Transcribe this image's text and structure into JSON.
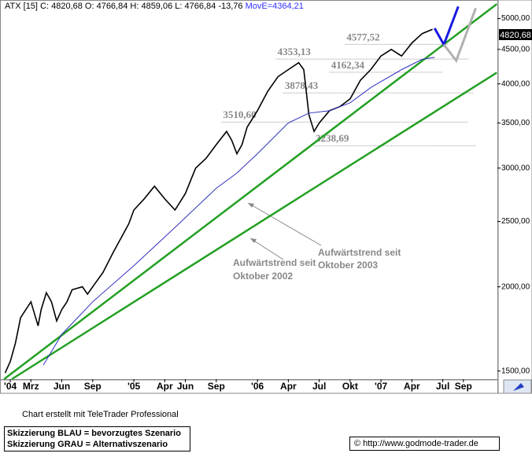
{
  "chart_data": {
    "type": "line",
    "log_scale": true,
    "header": "ATX [15] C: 4820,68 O: 4766,84 H: 4859,06 L: 4766,84 -13,76",
    "header_ma": "MovE=4364,21",
    "last_price": {
      "value": 4820.68,
      "label": "4820,68"
    },
    "xlim": [
      -1,
      47.3
    ],
    "ylim": [
      1459,
      5327
    ],
    "xticks": [
      {
        "value": 0,
        "label": "'04"
      },
      {
        "value": 2,
        "label": "Mrz"
      },
      {
        "value": 5,
        "label": "Jun"
      },
      {
        "value": 8,
        "label": "Sep"
      },
      {
        "value": 12,
        "label": "'05"
      },
      {
        "value": 15,
        "label": "Apr"
      },
      {
        "value": 17,
        "label": "Jun"
      },
      {
        "value": 20,
        "label": "Sep"
      },
      {
        "value": 24,
        "label": "'06"
      },
      {
        "value": 27,
        "label": "Apr"
      },
      {
        "value": 30,
        "label": "Jul"
      },
      {
        "value": 33,
        "label": "Okt"
      },
      {
        "value": 36,
        "label": "'07"
      },
      {
        "value": 39,
        "label": "Apr"
      },
      {
        "value": 42,
        "label": "Jul"
      },
      {
        "value": 44,
        "label": "Sep"
      }
    ],
    "yticks": [
      {
        "value": 1500,
        "label": "1500,00"
      },
      {
        "value": 2000,
        "label": "2000,00"
      },
      {
        "value": 2500,
        "label": "2500,00"
      },
      {
        "value": 3000,
        "label": "3000,00"
      },
      {
        "value": 3500,
        "label": "3500,00"
      },
      {
        "value": 4000,
        "label": "4000,00"
      },
      {
        "value": 4500,
        "label": "4500,00"
      },
      {
        "value": 5000,
        "label": "5000,00"
      }
    ],
    "series": [
      {
        "name": "ATX",
        "color": "#000000",
        "x": [
          -0.5,
          0,
          0.5,
          1,
          2,
          2.7,
          3,
          3.5,
          4,
          4.5,
          5,
          5.5,
          6,
          7,
          7.5,
          8,
          9,
          10,
          11,
          11.5,
          12,
          13,
          14,
          15,
          16,
          17,
          18,
          19,
          20,
          21,
          21.5,
          22,
          22.5,
          23,
          24,
          25,
          26,
          27,
          28,
          28.5,
          29,
          29.5,
          30,
          31,
          32,
          33,
          34,
          35,
          36,
          37,
          38,
          39,
          40,
          41
        ],
        "values": [
          1490,
          1550,
          1650,
          1800,
          1900,
          1750,
          1850,
          1960,
          1900,
          1780,
          1850,
          1900,
          1980,
          2000,
          1950,
          2000,
          2100,
          2250,
          2400,
          2480,
          2600,
          2700,
          2820,
          2700,
          2600,
          2750,
          3000,
          3100,
          3250,
          3400,
          3300,
          3150,
          3250,
          3450,
          3650,
          3900,
          4100,
          4200,
          4300,
          4200,
          3600,
          3400,
          3500,
          3650,
          3700,
          3800,
          4050,
          4200,
          4400,
          4500,
          4400,
          4600,
          4750,
          4820
        ]
      },
      {
        "name": "MovE",
        "color": "#3030c0",
        "x": [
          3.2,
          5,
          8,
          12,
          16,
          20,
          22,
          24,
          27,
          29,
          31,
          33,
          35,
          38,
          40,
          41.2
        ],
        "values": [
          1530,
          1700,
          1900,
          2150,
          2450,
          2800,
          2950,
          3150,
          3500,
          3620,
          3650,
          3750,
          3950,
          4200,
          4350,
          4380
        ]
      }
    ],
    "trendlines": [
      {
        "color": "#22a022",
        "x": [
          -0.6,
          47.25
        ],
        "values": [
          1459,
          5254
        ]
      },
      {
        "color": "#22a022",
        "x": [
          0.15,
          47.25
        ],
        "values": [
          1459,
          4157
        ]
      }
    ],
    "scenarios": [
      {
        "color": "#1a1ae0",
        "x": [
          41.2,
          42.1,
          43.5
        ],
        "values": [
          4837,
          4575,
          5210
        ]
      },
      {
        "color": "#b0b0b0",
        "x": [
          42.1,
          43.3,
          45.2
        ],
        "values": [
          4575,
          4330,
          5180
        ]
      }
    ],
    "levels": [
      {
        "value": 4577.52,
        "label": "4577,52",
        "x": [
          32.5,
          42.5
        ]
      },
      {
        "value": 4353.13,
        "label": "4353,13",
        "x": [
          25.8,
          44.5
        ]
      },
      {
        "value": 4162.34,
        "label": "4162,34",
        "x": [
          31,
          42
        ]
      },
      {
        "value": 3878.43,
        "label": "3878,43",
        "x": [
          26.5,
          45
        ]
      },
      {
        "value": 3510.6,
        "label": "3510,60",
        "x": [
          20.5,
          44.5
        ]
      },
      {
        "value": 3238.69,
        "label": "3238,69",
        "x": [
          29.5,
          45.2
        ]
      }
    ],
    "annotations": [
      "Aufwärtstrend seit",
      "Oktober 2002",
      "Aufwärtstrend seit",
      "Oktober 2003"
    ],
    "footer": "Chart erstellt mit TeleTrader Professional",
    "legend_blue": "Skizzierung BLAU = bevorzugtes Szenario",
    "legend_gray": "Skizzierung GRAU = Alternativszenario",
    "source": "© http://www.godmode-trader.de"
  }
}
